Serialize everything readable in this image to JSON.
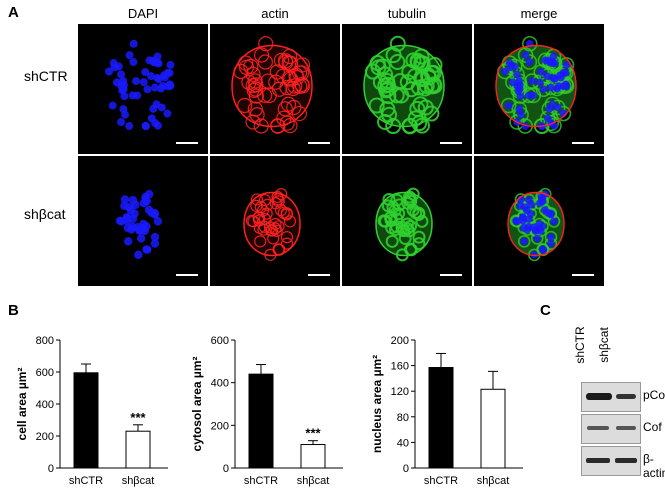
{
  "figure": {
    "panel_a_letter": "A",
    "panel_b_letter": "B",
    "panel_c_letter": "C",
    "columns": [
      "DAPI",
      "actin",
      "tubulin",
      "merge"
    ],
    "rows": [
      "shCTR",
      "shβcat"
    ],
    "colors": {
      "dapi": "#1a1aff",
      "actin": "#ff2020",
      "tubulin": "#2fd02f",
      "bar_dark": "#000000",
      "bar_light": "#ffffff"
    }
  },
  "chart_data": [
    {
      "type": "bar",
      "ylabel": "cell area µm²",
      "categories": [
        "shCTR",
        "shβcat"
      ],
      "values": [
        595,
        230
      ],
      "errors": [
        55,
        40
      ],
      "ylim": [
        0,
        800
      ],
      "yticks": [
        0,
        200,
        400,
        600,
        800
      ],
      "annotations": [
        "",
        "***"
      ]
    },
    {
      "type": "bar",
      "ylabel": "cytosol area µm²",
      "categories": [
        "shCTR",
        "shβcat"
      ],
      "values": [
        440,
        110
      ],
      "errors": [
        45,
        18
      ],
      "ylim": [
        0,
        600
      ],
      "yticks": [
        0,
        200,
        400,
        600
      ],
      "annotations": [
        "",
        "***"
      ]
    },
    {
      "type": "bar",
      "ylabel": "nucleus area µm²",
      "categories": [
        "shCTR",
        "shβcat"
      ],
      "values": [
        157,
        123
      ],
      "errors": [
        22,
        28
      ],
      "ylim": [
        0,
        200
      ],
      "yticks": [
        0,
        40,
        80,
        120,
        160,
        200
      ],
      "annotations": [
        "",
        ""
      ]
    }
  ],
  "blot": {
    "lanes": [
      "shCTR",
      "shβcat"
    ],
    "bands": [
      "pCof",
      "Cof",
      "β-actin"
    ]
  }
}
